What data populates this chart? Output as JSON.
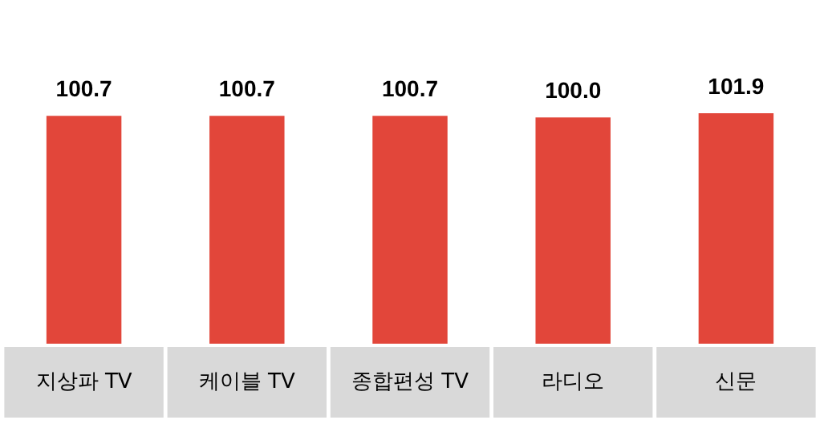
{
  "chart_data": {
    "type": "bar",
    "categories": [
      "지상파 TV",
      "케이블 TV",
      "종합편성 TV",
      "라디오",
      "신문"
    ],
    "values": [
      100.7,
      100.7,
      100.7,
      100.0,
      101.9
    ],
    "value_labels": [
      "100.7",
      "100.7",
      "100.7",
      "100.0",
      "101.9"
    ],
    "color": "#e2463a"
  }
}
